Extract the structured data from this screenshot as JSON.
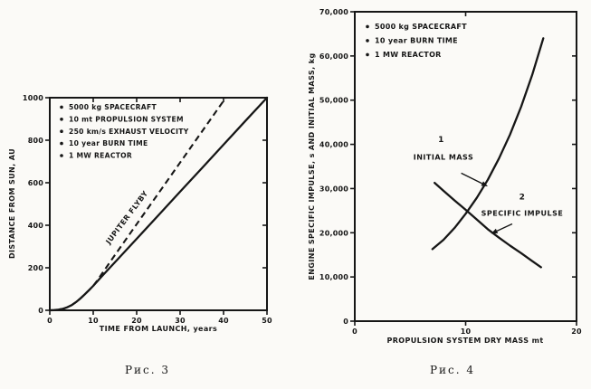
{
  "page": {
    "background": "#fbfaf7",
    "ink": "#161616"
  },
  "chart_data": [
    {
      "figure_id": "fig3",
      "type": "line",
      "caption": "Рис. 3",
      "xlabel": "TIME FROM LAUNCH, years",
      "ylabel": "DISTANCE FROM SUN, AU",
      "xlim": [
        0,
        50
      ],
      "ylim": [
        0,
        1000
      ],
      "grid": false,
      "legend_position": "top-left-inside",
      "xticks": {
        "values": [
          0,
          10,
          20,
          30,
          40,
          50
        ],
        "labels": [
          "0",
          "10",
          "20",
          "30",
          "40",
          "50"
        ]
      },
      "yticks": {
        "values": [
          0,
          200,
          400,
          600,
          800,
          1000
        ],
        "labels": [
          "0",
          "200",
          "400",
          "600",
          "800",
          "1000"
        ]
      },
      "legend_bullets": [
        "5000 kg SPACECRAFT",
        "10 mt PROPULSION SYSTEM",
        "250 km/s EXHAUST VELOCITY",
        "10 year BURN TIME",
        "1 MW REACTOR"
      ],
      "series": [
        {
          "name": "jupiter-flyby-trajectory",
          "style": "dashed",
          "points": [
            [
              0,
              0
            ],
            [
              1,
              1
            ],
            [
              2,
              3
            ],
            [
              3,
              7
            ],
            [
              4,
              14
            ],
            [
              5,
              24
            ],
            [
              6,
              38
            ],
            [
              7,
              55
            ],
            [
              8,
              74
            ],
            [
              9,
              94
            ],
            [
              10,
              115
            ],
            [
              11,
              142
            ],
            [
              12,
              172
            ],
            [
              15,
              260
            ],
            [
              20,
              405
            ],
            [
              25,
              550
            ],
            [
              30,
              695
            ],
            [
              35,
              840
            ],
            [
              40,
              985
            ],
            [
              40.5,
              1000
            ]
          ]
        },
        {
          "name": "direct-trajectory",
          "style": "solid",
          "points": [
            [
              0,
              0
            ],
            [
              1,
              1
            ],
            [
              2,
              3
            ],
            [
              3,
              7
            ],
            [
              4,
              14
            ],
            [
              5,
              24
            ],
            [
              6,
              38
            ],
            [
              7,
              55
            ],
            [
              8,
              74
            ],
            [
              9,
              94
            ],
            [
              10,
              115
            ],
            [
              12,
              160
            ],
            [
              15,
              226
            ],
            [
              20,
              336
            ],
            [
              25,
              447
            ],
            [
              30,
              558
            ],
            [
              35,
              668
            ],
            [
              40,
              779
            ],
            [
              45,
              890
            ],
            [
              50,
              1000
            ]
          ]
        }
      ],
      "annotations": [
        {
          "text": "JUPITER FLYBY",
          "x": 18.2,
          "y": 430,
          "rotation": -53
        }
      ],
      "arrows": []
    },
    {
      "figure_id": "fig4",
      "type": "line",
      "caption": "Рис. 4",
      "xlabel": "PROPULSION SYSTEM DRY MASS mt",
      "ylabel": "ENGINE SPECIFIC IMPULSE, s AND INITIAL MASS, kg",
      "xlim": [
        0,
        20
      ],
      "ylim": [
        0,
        70000
      ],
      "grid": false,
      "legend_position": "top-left-inside",
      "xticks": {
        "values": [
          0,
          10,
          20
        ],
        "labels": [
          "0",
          "10",
          "20"
        ]
      },
      "yticks": {
        "values": [
          0,
          10000,
          20000,
          30000,
          40000,
          50000,
          60000,
          70000
        ],
        "labels": [
          "0",
          "10,000",
          "20,000",
          "30,000",
          "40,000",
          "50,000",
          "60,000",
          "70,000"
        ]
      },
      "legend_bullets": [
        "5000 kg SPACECRAFT",
        "10 year BURN TIME",
        "1 MW REACTOR"
      ],
      "series": [
        {
          "name": "initial-mass-curve",
          "style": "solid",
          "points": [
            [
              7,
              16300
            ],
            [
              8,
              18400
            ],
            [
              9,
              21100
            ],
            [
              10,
              24300
            ],
            [
              11,
              27900
            ],
            [
              12,
              32000
            ],
            [
              13,
              36800
            ],
            [
              14,
              42200
            ],
            [
              15,
              48500
            ],
            [
              16,
              55700
            ],
            [
              17,
              64000
            ]
          ]
        },
        {
          "name": "specific-impulse-curve",
          "style": "solid",
          "points": [
            [
              7.2,
              31300
            ],
            [
              8,
              29500
            ],
            [
              9,
              27300
            ],
            [
              10,
              25200
            ],
            [
              11,
              23000
            ],
            [
              12,
              20800
            ],
            [
              13,
              18900
            ],
            [
              14,
              17100
            ],
            [
              15,
              15400
            ],
            [
              16,
              13600
            ],
            [
              16.8,
              12200
            ]
          ]
        }
      ],
      "annotations": [
        {
          "text": "1",
          "x": 7.8,
          "y": 40500,
          "rotation": 0
        },
        {
          "text": "INITIAL MASS",
          "x": 8.0,
          "y": 36500,
          "rotation": 0
        },
        {
          "text": "2",
          "x": 15.1,
          "y": 27500,
          "rotation": 0
        },
        {
          "text": "SPECIFIC IMPULSE",
          "x": 15.1,
          "y": 23800,
          "rotation": 0
        }
      ],
      "arrows": [
        {
          "from": [
            9.6,
            33500
          ],
          "to": [
            12.0,
            30500
          ]
        },
        {
          "from": [
            14.2,
            22000
          ],
          "to": [
            12.3,
            19800
          ]
        }
      ]
    }
  ]
}
